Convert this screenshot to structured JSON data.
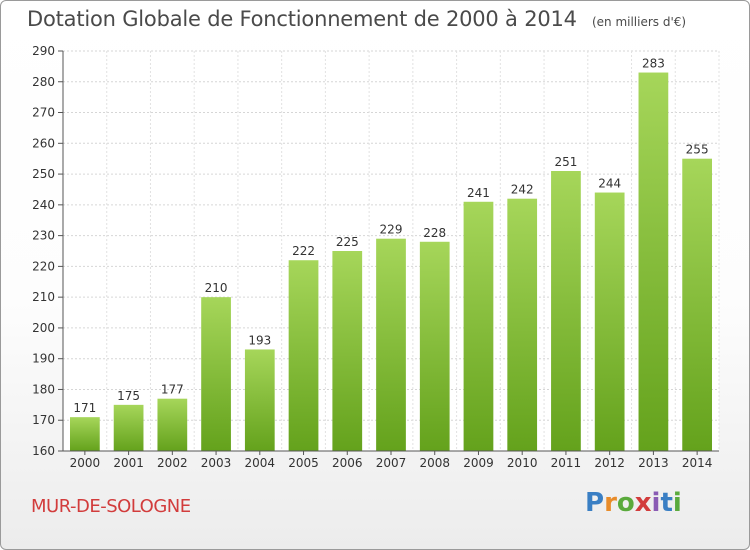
{
  "chart_data": {
    "type": "bar",
    "title": "Dotation Globale de Fonctionnement de 2000 à 2014",
    "unit_note": "(en milliers d'€)",
    "categories": [
      "2000",
      "2001",
      "2002",
      "2003",
      "2004",
      "2005",
      "2006",
      "2007",
      "2008",
      "2009",
      "2010",
      "2011",
      "2012",
      "2013",
      "2014"
    ],
    "values": [
      171,
      175,
      177,
      210,
      193,
      222,
      225,
      229,
      228,
      241,
      242,
      251,
      244,
      283,
      255
    ],
    "ylim": [
      160,
      290
    ],
    "yticks": [
      160,
      170,
      180,
      190,
      200,
      210,
      220,
      230,
      240,
      250,
      260,
      270,
      280,
      290
    ],
    "grid": true,
    "bar_color_top": "#a6d65a",
    "bar_color_bottom": "#64a21c"
  },
  "place_name": "MUR-DE-SOLOGNE",
  "brand": {
    "letters": [
      "P",
      "r",
      "o",
      "x",
      "i",
      "t",
      "i"
    ]
  }
}
